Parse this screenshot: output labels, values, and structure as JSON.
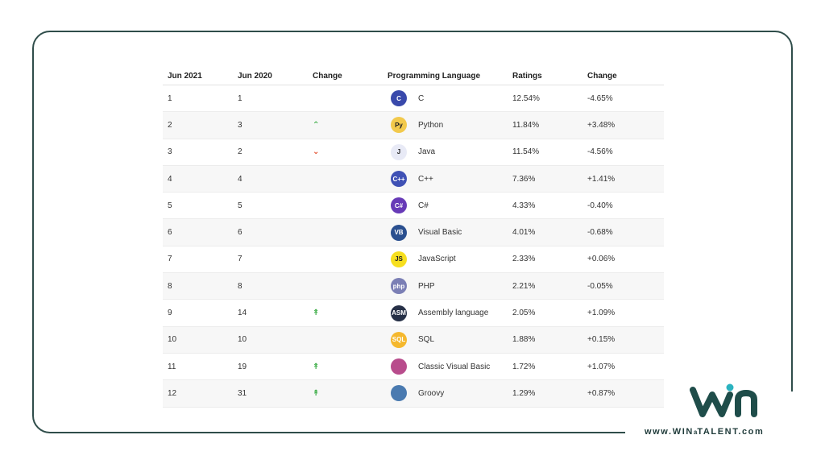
{
  "table": {
    "headers": [
      "Jun 2021",
      "Jun 2020",
      "Change",
      "Programming Language",
      "Ratings",
      "Change"
    ],
    "rows": [
      {
        "jun2021": "1",
        "jun2020": "1",
        "trend": "",
        "icon": "c-icon",
        "icon_text": "C",
        "icon_color": "#3949ab",
        "language": "C",
        "rating": "12.54%",
        "change": "-4.65%"
      },
      {
        "jun2021": "2",
        "jun2020": "3",
        "trend": "^",
        "icon": "python-icon",
        "icon_text": "Py",
        "icon_color": "#f2c94c",
        "language": "Python",
        "rating": "11.84%",
        "change": "+3.48%"
      },
      {
        "jun2021": "3",
        "jun2020": "2",
        "trend": "v",
        "icon": "java-icon",
        "icon_text": "J",
        "icon_color": "#e8eaf6",
        "language": "Java",
        "rating": "11.54%",
        "change": "-4.56%"
      },
      {
        "jun2021": "4",
        "jun2020": "4",
        "trend": "",
        "icon": "cpp-icon",
        "icon_text": "C++",
        "icon_color": "#3f51b5",
        "language": "C++",
        "rating": "7.36%",
        "change": "+1.41%"
      },
      {
        "jun2021": "5",
        "jun2020": "5",
        "trend": "",
        "icon": "csharp-icon",
        "icon_text": "C#",
        "icon_color": "#673ab7",
        "language": "C#",
        "rating": "4.33%",
        "change": "-0.40%"
      },
      {
        "jun2021": "6",
        "jun2020": "6",
        "trend": "",
        "icon": "vb-icon",
        "icon_text": "VB",
        "icon_color": "#2a4f8f",
        "language": "Visual Basic",
        "rating": "4.01%",
        "change": "-0.68%"
      },
      {
        "jun2021": "7",
        "jun2020": "7",
        "trend": "",
        "icon": "javascript-icon",
        "icon_text": "JS",
        "icon_color": "#f7df1e",
        "language": "JavaScript",
        "rating": "2.33%",
        "change": "+0.06%"
      },
      {
        "jun2021": "8",
        "jun2020": "8",
        "trend": "",
        "icon": "php-icon",
        "icon_text": "php",
        "icon_color": "#7b7fb5",
        "language": "PHP",
        "rating": "2.21%",
        "change": "-0.05%"
      },
      {
        "jun2021": "9",
        "jun2020": "14",
        "trend": "^^",
        "icon": "asm-icon",
        "icon_text": "ASM",
        "icon_color": "#263047",
        "language": "Assembly language",
        "rating": "2.05%",
        "change": "+1.09%"
      },
      {
        "jun2021": "10",
        "jun2020": "10",
        "trend": "",
        "icon": "sql-icon",
        "icon_text": "SQL",
        "icon_color": "#f5b82e",
        "language": "SQL",
        "rating": "1.88%",
        "change": "+0.15%"
      },
      {
        "jun2021": "11",
        "jun2020": "19",
        "trend": "^^",
        "icon": "classic-vb-icon",
        "icon_text": "",
        "icon_color": "#b84c8c",
        "language": "Classic Visual Basic",
        "rating": "1.72%",
        "change": "+1.07%"
      },
      {
        "jun2021": "12",
        "jun2020": "31",
        "trend": "^^",
        "icon": "groovy-icon",
        "icon_text": "",
        "icon_color": "#4a7ab0",
        "language": "Groovy",
        "rating": "1.29%",
        "change": "+0.87%"
      }
    ]
  },
  "brand": {
    "site_prefix": "www.",
    "site_win": "WIN",
    "site_a": "a",
    "site_talent": "TALENT",
    "site_suffix": ".com",
    "logo_colors": {
      "dark": "#1f4d4a",
      "accent": "#2bb3c0"
    }
  },
  "colors": {
    "up": "#3fae49",
    "down": "#e2502f",
    "frame": "#2f4d4a"
  }
}
